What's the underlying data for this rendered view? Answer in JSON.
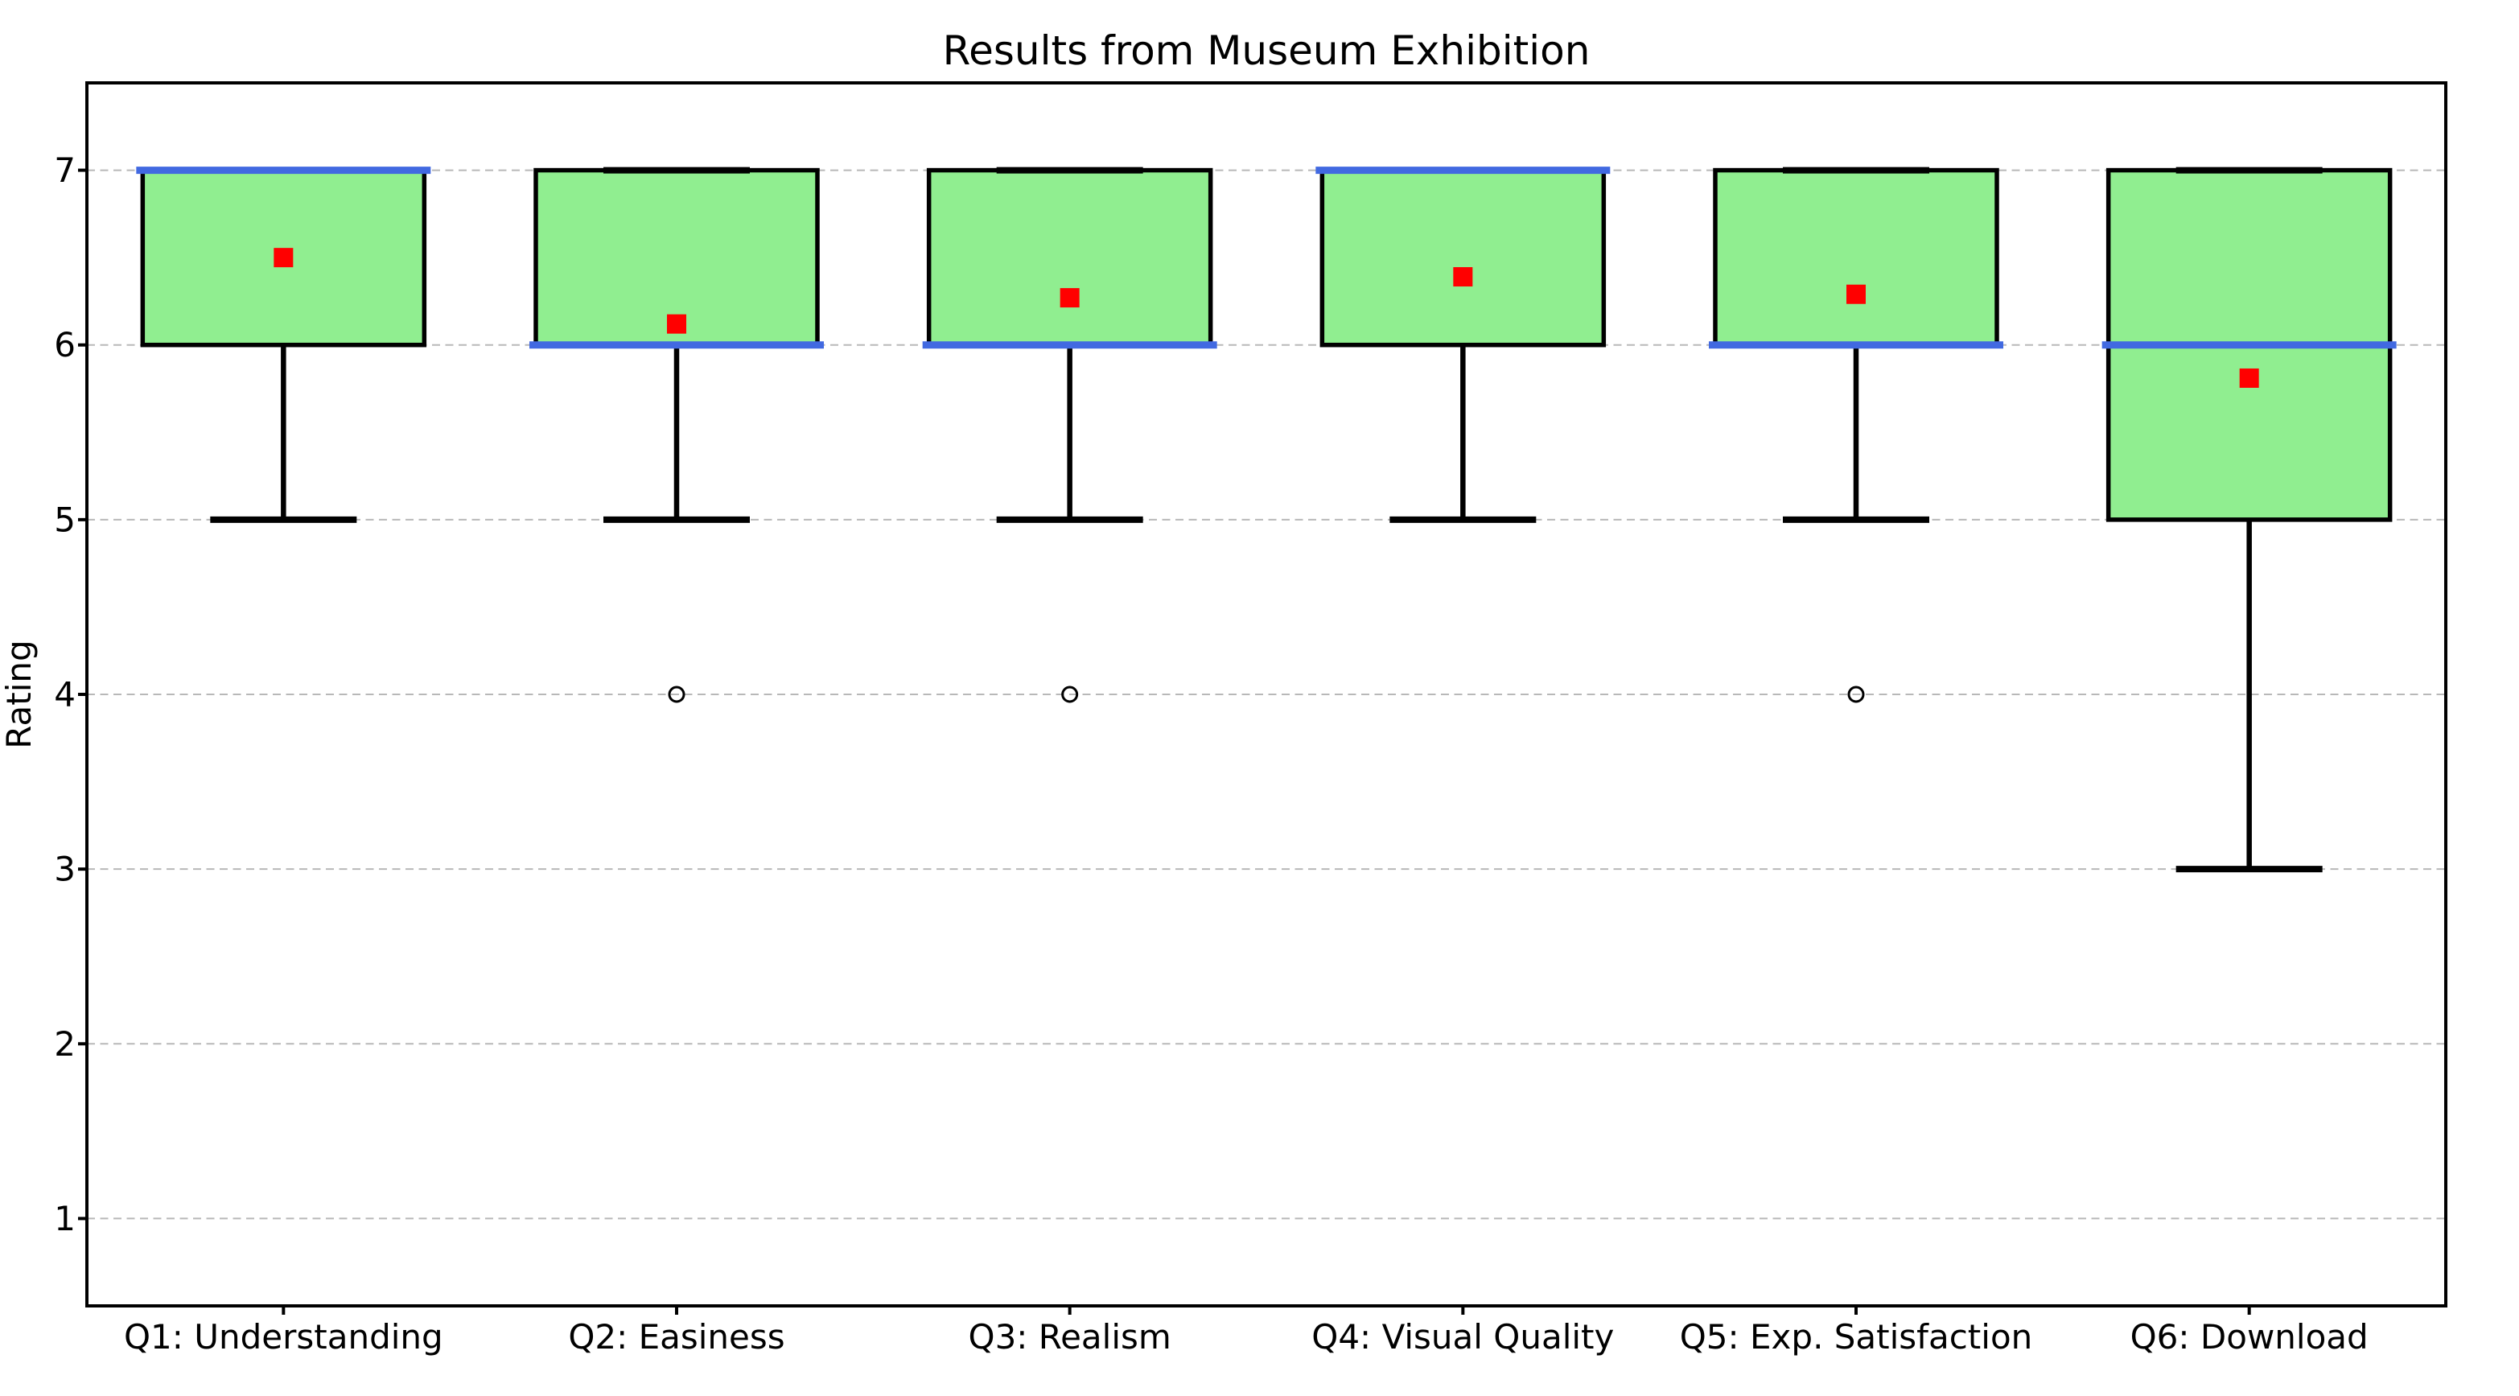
{
  "chart_data": {
    "type": "box",
    "title": "Results from Museum Exhibition",
    "ylabel": "Rating",
    "xlabel": "",
    "ylim": [
      0.5,
      7.5
    ],
    "yticks": [
      1,
      2,
      3,
      4,
      5,
      6,
      7
    ],
    "grid": "horizontal-dashed",
    "legend": "none",
    "categories": [
      "Q1: Understanding",
      "Q2: Easiness",
      "Q3: Realism",
      "Q4: Visual Quality",
      "Q5: Exp. Satisfaction",
      "Q6: Download"
    ],
    "series": [
      {
        "label": "Q1: Understanding",
        "whisker_low": 5,
        "q1": 6,
        "median": 7,
        "q3": 7,
        "whisker_high": 7,
        "mean": 6.5,
        "outliers": []
      },
      {
        "label": "Q2: Easiness",
        "whisker_low": 5,
        "q1": 6,
        "median": 6,
        "q3": 7,
        "whisker_high": 7,
        "mean": 6.12,
        "outliers": [
          4
        ]
      },
      {
        "label": "Q3: Realism",
        "whisker_low": 5,
        "q1": 6,
        "median": 6,
        "q3": 7,
        "whisker_high": 7,
        "mean": 6.27,
        "outliers": [
          4
        ]
      },
      {
        "label": "Q4: Visual Quality",
        "whisker_low": 5,
        "q1": 6,
        "median": 7,
        "q3": 7,
        "whisker_high": 7,
        "mean": 6.39,
        "outliers": []
      },
      {
        "label": "Q5: Exp. Satisfaction",
        "whisker_low": 5,
        "q1": 6,
        "median": 6,
        "q3": 7,
        "whisker_high": 7,
        "mean": 6.29,
        "outliers": [
          4
        ]
      },
      {
        "label": "Q6: Download",
        "whisker_low": 3,
        "q1": 5,
        "median": 6,
        "q3": 7,
        "whisker_high": 7,
        "mean": 5.81,
        "outliers": []
      }
    ],
    "style": {
      "box_fill": "#90ee90",
      "box_edge": "#000000",
      "median_color": "#4169e1",
      "mean_marker": "square",
      "mean_color": "#ff0000",
      "outlier_marker": "hollow-circle",
      "outlier_edge": "#000000",
      "grid_color": "#b8b8b8",
      "axis_color": "#000000",
      "background": "#ffffff"
    }
  }
}
